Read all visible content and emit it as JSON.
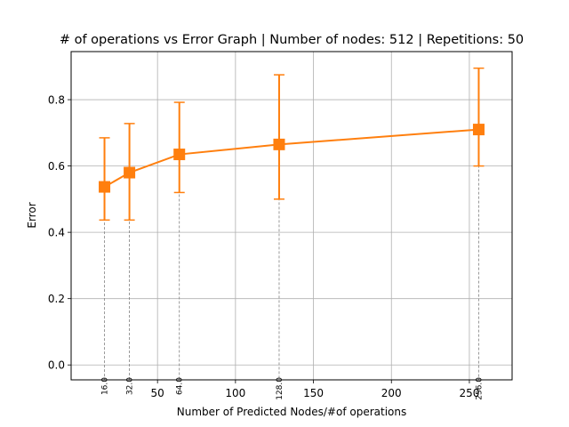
{
  "chart_data": {
    "type": "line",
    "title": "# of operations vs Error Graph | Number of nodes: 512 | Repetitions: 50",
    "xlabel": "Number of Predicted Nodes/#of operations",
    "ylabel": "Error",
    "xlim": [
      -5.4,
      277.4
    ],
    "ylim": [
      -0.045,
      0.945
    ],
    "x_ticks": [
      50,
      100,
      150,
      200,
      250
    ],
    "y_ticks": [
      0.0,
      0.2,
      0.4,
      0.6,
      0.8
    ],
    "y_tick_labels": [
      "0.0",
      "0.2",
      "0.4",
      "0.6",
      "0.8"
    ],
    "grid": true,
    "series": [
      {
        "x": [
          16,
          32,
          64,
          128,
          256
        ],
        "y": [
          0.537,
          0.58,
          0.635,
          0.665,
          0.71
        ],
        "err_low": [
          0.437,
          0.437,
          0.52,
          0.5,
          0.6
        ],
        "err_high": [
          0.685,
          0.728,
          0.792,
          0.875,
          0.895
        ],
        "color": "#ff7f0e",
        "marker": "square"
      }
    ],
    "point_labels": [
      "16.0",
      "32.0",
      "64.0",
      "128.0",
      "256.0"
    ],
    "guide_color": "#808080"
  }
}
